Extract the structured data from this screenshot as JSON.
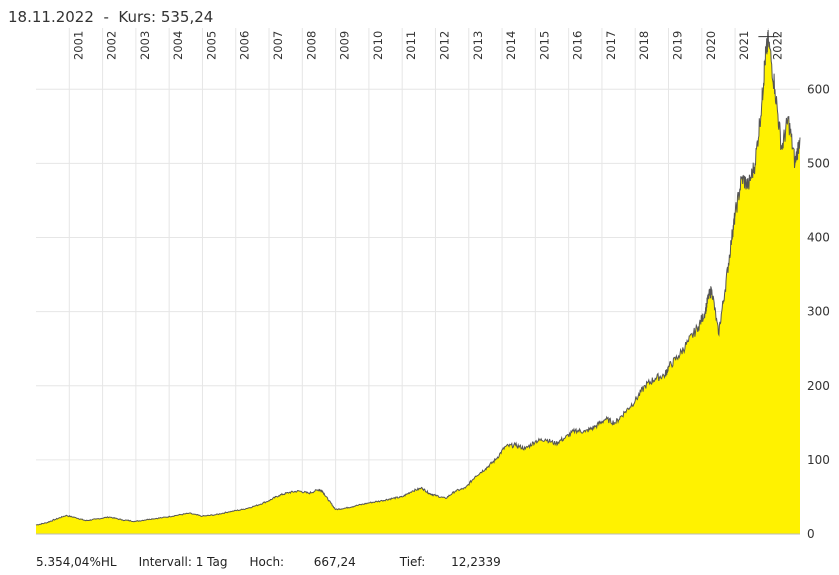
{
  "header": {
    "date": "18.11.2022",
    "separator": "-",
    "kurs_label": "Kurs:",
    "kurs_value": "535,24"
  },
  "footer": {
    "performance": "5.354,04%HL",
    "intervall": "Intervall: 1 Tag",
    "hoch_label": "Hoch:",
    "hoch_value": "667,24",
    "tief_label": "Tief:",
    "tief_value": "12,2339"
  },
  "colors": {
    "area_fill": "#fff200",
    "line": "#555555",
    "grid": "#e6e6e6"
  },
  "chart_data": {
    "type": "area",
    "title": "",
    "xlabel": "",
    "ylabel": "",
    "x_range": [
      2000.0,
      2022.95
    ],
    "ylim": [
      0,
      680
    ],
    "y_ticks": [
      0,
      100,
      200,
      300,
      400,
      500,
      600
    ],
    "x_ticks": [
      "2001",
      "2002",
      "2003",
      "2004",
      "2005",
      "2006",
      "2007",
      "2008",
      "2009",
      "2010",
      "2011",
      "2012",
      "2013",
      "2014",
      "2015",
      "2016",
      "2017",
      "2018",
      "2019",
      "2020",
      "2021",
      "2022"
    ],
    "grid": true,
    "series": [
      {
        "x": [
          2000.0,
          2000.3,
          2000.6,
          2000.9,
          2001.2,
          2001.5,
          2001.8,
          2002.2,
          2002.6,
          2003.0,
          2003.4,
          2003.8,
          2004.2,
          2004.6,
          2005.0,
          2005.4,
          2005.8,
          2006.2,
          2006.6,
          2007.0,
          2007.3,
          2007.6,
          2007.9,
          2008.2,
          2008.5,
          2008.6,
          2008.8,
          2009.0,
          2009.3,
          2009.6,
          2010.0,
          2010.4,
          2010.7,
          2011.0,
          2011.3,
          2011.6,
          2011.8,
          2012.0,
          2012.3,
          2012.6,
          2012.9,
          2013.2,
          2013.5,
          2013.8,
          2014.1,
          2014.4,
          2014.7,
          2015.0,
          2015.3,
          2015.6,
          2015.9,
          2016.2,
          2016.5,
          2016.8,
          2017.1,
          2017.4,
          2017.7,
          2018.0,
          2018.3,
          2018.6,
          2018.9,
          2019.0,
          2019.3,
          2019.6,
          2019.9,
          2020.1,
          2020.2,
          2020.3,
          2020.5,
          2020.7,
          2020.9,
          2021.0,
          2021.2,
          2021.4,
          2021.6,
          2021.8,
          2021.9,
          2022.0,
          2022.2,
          2022.4,
          2022.6,
          2022.8,
          2022.95
        ],
        "y": [
          12.2,
          15,
          20,
          25,
          22,
          18,
          20,
          23,
          19,
          17,
          20,
          22,
          25,
          28,
          24,
          26,
          30,
          33,
          38,
          45,
          52,
          56,
          58,
          55,
          60,
          58,
          45,
          33,
          35,
          38,
          42,
          45,
          48,
          50,
          58,
          62,
          55,
          52,
          48,
          58,
          62,
          78,
          88,
          100,
          118,
          120,
          115,
          125,
          128,
          122,
          130,
          140,
          138,
          145,
          155,
          150,
          165,
          180,
          200,
          210,
          215,
          225,
          240,
          260,
          280,
          300,
          320,
          330,
          270,
          330,
          400,
          430,
          480,
          470,
          500,
          580,
          640,
          667,
          600,
          520,
          560,
          500,
          535
        ]
      }
    ]
  }
}
